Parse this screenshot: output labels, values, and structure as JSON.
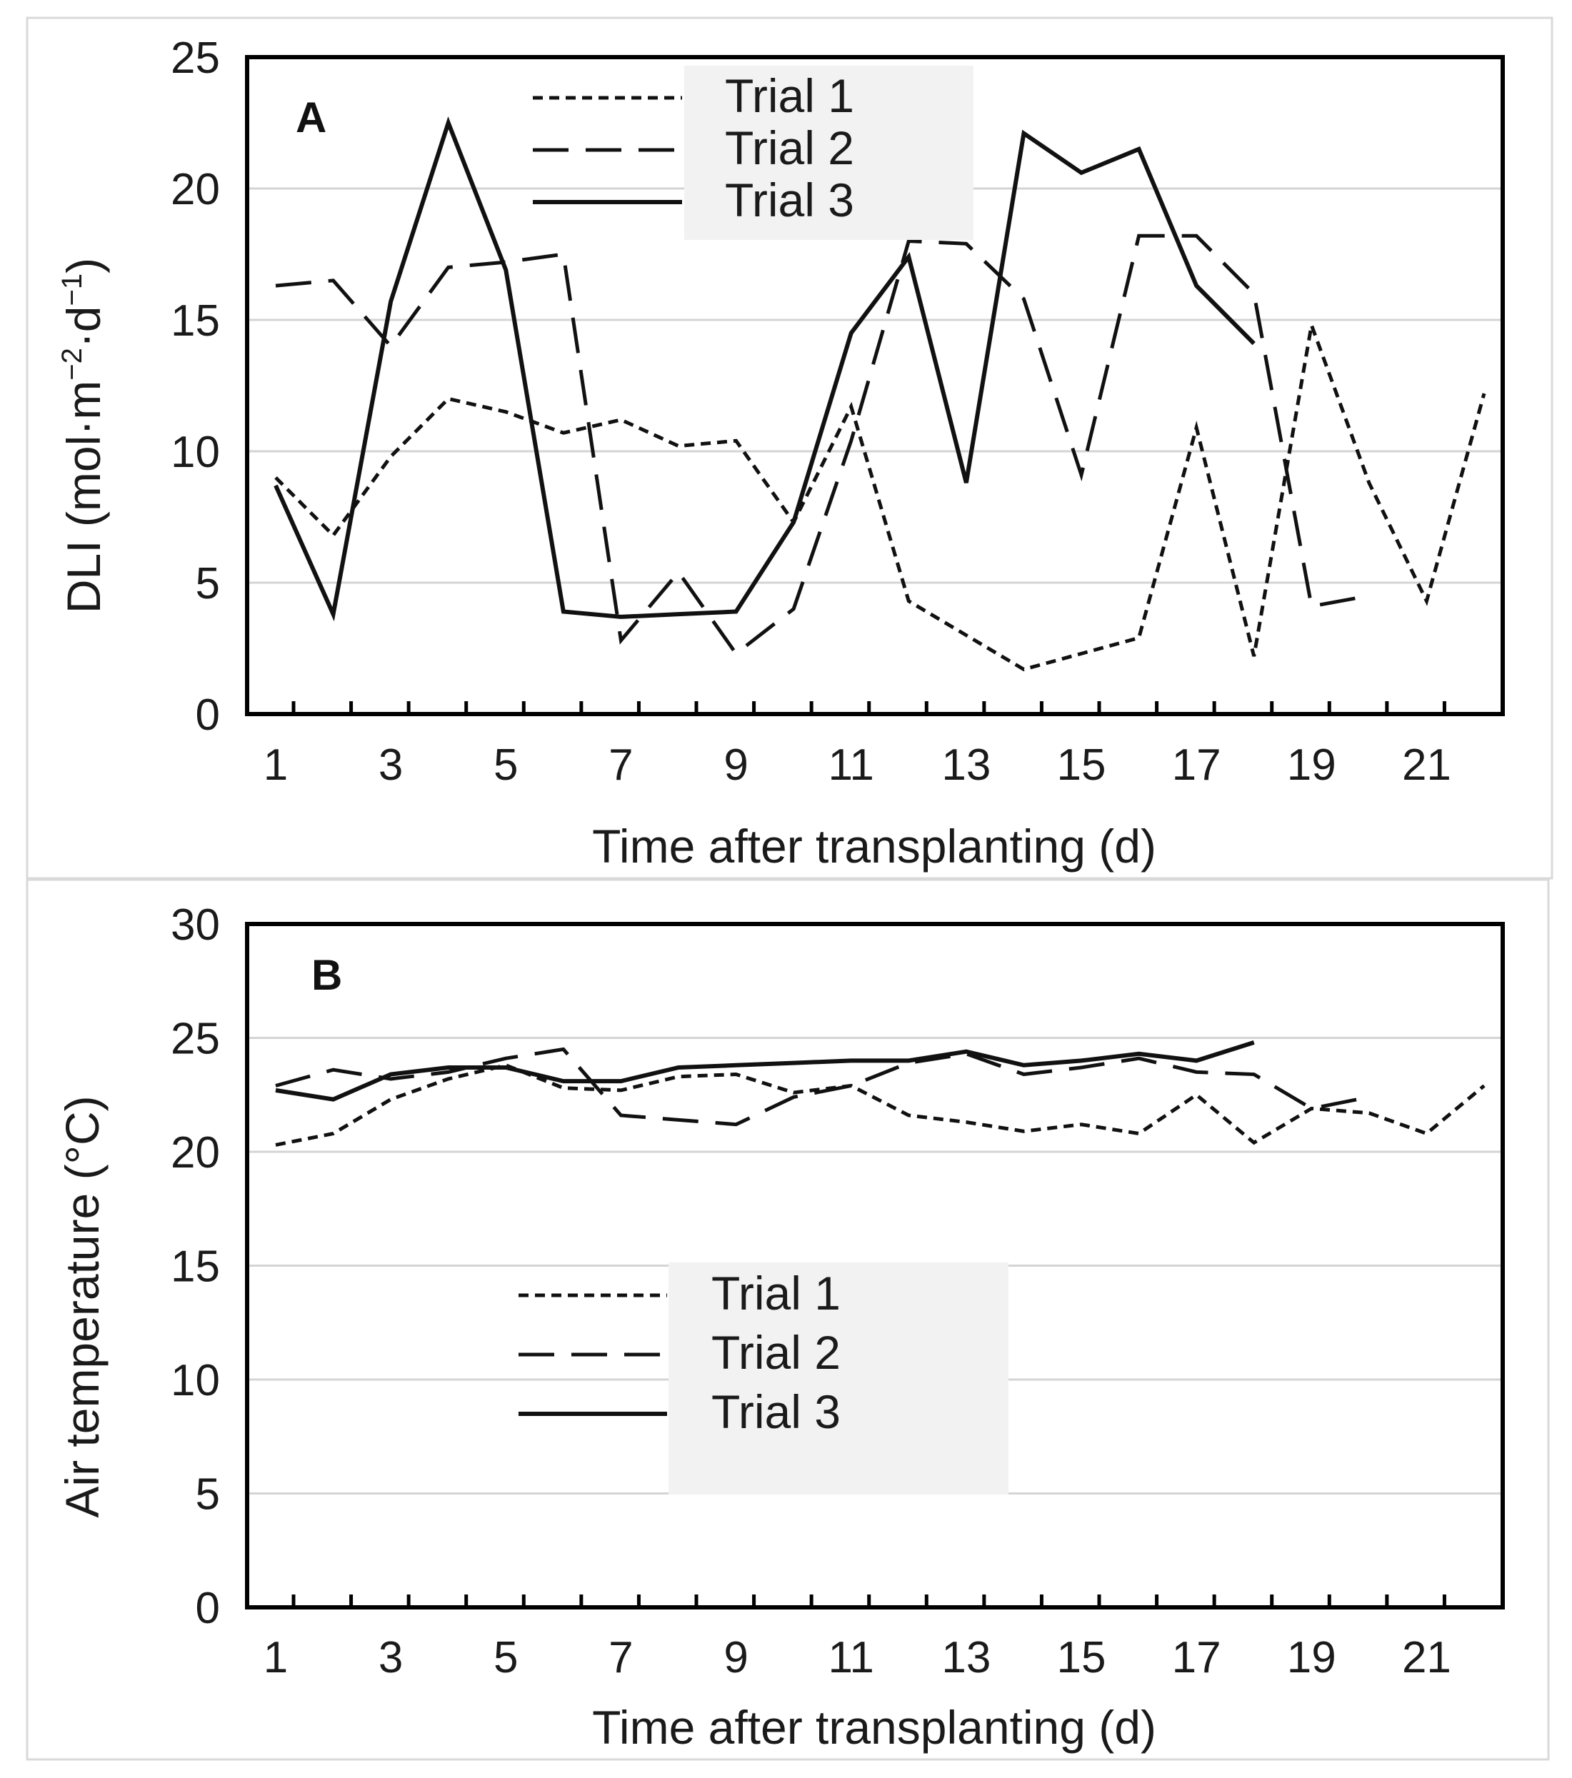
{
  "chart_data": [
    {
      "type": "line",
      "panel": "A",
      "xlabel": "Time after transplanting (d)",
      "ylabel_main": "DLI (mol·m",
      "ylabel_sup1": "−2",
      "ylabel_mid": "·d",
      "ylabel_sup2": "−1",
      "ylabel_end": ")",
      "ylim": [
        0,
        25
      ],
      "y_ticks": [
        "0",
        "5",
        "10",
        "15",
        "20",
        "25"
      ],
      "x_tick_labels": [
        "1",
        "3",
        "5",
        "7",
        "9",
        "11",
        "13",
        "15",
        "17",
        "19",
        "21"
      ],
      "grid": true,
      "legend": [
        "Trial 1",
        "Trial 2",
        "Trial 3"
      ],
      "series": [
        {
          "name": "Trial 1",
          "style": "short-dash",
          "x": [
            1,
            2,
            3,
            4,
            5,
            6,
            7,
            8,
            9,
            10,
            11,
            12,
            13,
            14,
            15,
            16,
            17,
            18,
            19,
            20,
            21,
            22
          ],
          "values": [
            9.0,
            6.8,
            9.8,
            12.0,
            11.5,
            10.7,
            11.2,
            10.2,
            10.4,
            7.3,
            11.7,
            4.3,
            3.0,
            1.7,
            2.3,
            2.9,
            10.9,
            2.2,
            14.8,
            8.8,
            4.3,
            12.2
          ]
        },
        {
          "name": "Trial 2",
          "style": "long-dash",
          "x": [
            1,
            2,
            3,
            4,
            5,
            6,
            7,
            8,
            9,
            10,
            11,
            12,
            13,
            14,
            15,
            16,
            17,
            18,
            19,
            20
          ],
          "values": [
            16.3,
            16.5,
            14.0,
            17.0,
            17.2,
            17.5,
            2.8,
            5.4,
            2.3,
            4.0,
            10.4,
            18.0,
            17.9,
            15.8,
            9.1,
            18.2,
            18.2,
            16.0,
            4.1,
            4.5
          ]
        },
        {
          "name": "Trial 3",
          "style": "solid",
          "x": [
            1,
            2,
            3,
            4,
            5,
            6,
            7,
            8,
            9,
            10,
            11,
            12,
            13,
            14,
            15,
            16,
            17,
            18
          ],
          "values": [
            8.7,
            3.8,
            15.7,
            22.5,
            16.9,
            3.9,
            3.7,
            3.8,
            3.9,
            7.3,
            14.5,
            17.4,
            8.8,
            22.1,
            20.6,
            21.5,
            16.3,
            14.1
          ]
        }
      ]
    },
    {
      "type": "line",
      "panel": "B",
      "xlabel": "Time after transplanting (d)",
      "ylabel": "Air temperature (°C)",
      "ylim": [
        0,
        30
      ],
      "y_ticks": [
        "0",
        "5",
        "10",
        "15",
        "20",
        "25",
        "30"
      ],
      "x_tick_labels": [
        "1",
        "3",
        "5",
        "7",
        "9",
        "11",
        "13",
        "15",
        "17",
        "19",
        "21"
      ],
      "grid": true,
      "legend": [
        "Trial 1",
        "Trial 2",
        "Trial 3"
      ],
      "series": [
        {
          "name": "Trial 1",
          "style": "short-dash",
          "x": [
            1,
            2,
            3,
            4,
            5,
            6,
            7,
            8,
            9,
            10,
            11,
            12,
            13,
            14,
            15,
            16,
            17,
            18,
            19,
            20,
            21,
            22
          ],
          "values": [
            20.3,
            20.8,
            22.3,
            23.2,
            23.8,
            22.8,
            22.7,
            23.3,
            23.4,
            22.6,
            22.9,
            21.6,
            21.3,
            20.9,
            21.2,
            20.8,
            22.5,
            20.4,
            21.9,
            21.7,
            20.8,
            22.9
          ]
        },
        {
          "name": "Trial 2",
          "style": "long-dash",
          "x": [
            1,
            2,
            3,
            4,
            5,
            6,
            7,
            8,
            9,
            10,
            11,
            12,
            13,
            14,
            15,
            16,
            17,
            18,
            19,
            20
          ],
          "values": [
            22.9,
            23.6,
            23.2,
            23.5,
            24.1,
            24.5,
            21.6,
            21.4,
            21.2,
            22.4,
            22.9,
            23.9,
            24.3,
            23.4,
            23.7,
            24.1,
            23.5,
            23.4,
            21.9,
            22.4
          ]
        },
        {
          "name": "Trial 3",
          "style": "solid",
          "x": [
            1,
            2,
            3,
            4,
            5,
            6,
            7,
            8,
            9,
            10,
            11,
            12,
            13,
            14,
            15,
            16,
            17,
            18
          ],
          "values": [
            22.7,
            22.3,
            23.4,
            23.7,
            23.7,
            23.1,
            23.1,
            23.7,
            23.8,
            23.9,
            24.0,
            24.0,
            24.4,
            23.8,
            24.0,
            24.3,
            24.0,
            24.8
          ]
        }
      ]
    }
  ]
}
